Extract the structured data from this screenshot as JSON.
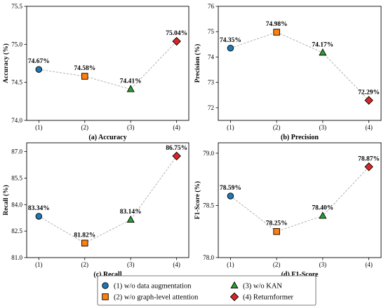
{
  "chart_data": [
    {
      "type": "line",
      "caption": "(a) Accuracy",
      "ylabel": "Accuracy (%)",
      "categories": [
        "(1)",
        "(2)",
        "(3)",
        "(4)"
      ],
      "values": [
        74.67,
        74.58,
        74.41,
        75.04
      ],
      "labels": [
        "74.67%",
        "74.58%",
        "74.41%",
        "75.04%"
      ],
      "ylim": [
        74.0,
        75.5
      ],
      "yticks": [
        74.0,
        74.5,
        75.0,
        75.5
      ],
      "ytick_labels": [
        "74.0",
        "74.5",
        "75.0",
        "75.5"
      ]
    },
    {
      "type": "line",
      "caption": "(b) Precision",
      "ylabel": "Precision (%)",
      "categories": [
        "(1)",
        "(2)",
        "(3)",
        "(4)"
      ],
      "values": [
        74.35,
        74.98,
        74.17,
        72.29
      ],
      "labels": [
        "74.35%",
        "74.98%",
        "74.17%",
        "72.29%"
      ],
      "ylim": [
        71.5,
        76.0
      ],
      "yticks": [
        72,
        73,
        74,
        75,
        76
      ],
      "ytick_labels": [
        "72",
        "73",
        "74",
        "75",
        "76"
      ]
    },
    {
      "type": "line",
      "caption": "(c) Recall",
      "ylabel": "Recall (%)",
      "categories": [
        "(1)",
        "(2)",
        "(3)",
        "(4)"
      ],
      "values": [
        83.34,
        81.82,
        83.14,
        86.75
      ],
      "labels": [
        "83.34%",
        "81.82%",
        "83.14%",
        "86.75%"
      ],
      "ylim": [
        81.0,
        87.5
      ],
      "yticks": [
        81.0,
        82.5,
        84.0,
        85.5,
        87.0
      ],
      "ytick_labels": [
        "81.0",
        "82.5",
        "84.0",
        "85.5",
        "87.0"
      ]
    },
    {
      "type": "line",
      "caption": "(d) F1-Score",
      "ylabel": "F1-Score (%)",
      "categories": [
        "(1)",
        "(2)",
        "(3)",
        "(4)"
      ],
      "values": [
        78.59,
        78.25,
        78.4,
        78.87
      ],
      "labels": [
        "78.59%",
        "78.25%",
        "78.40%",
        "78.87%"
      ],
      "ylim": [
        78.0,
        79.1
      ],
      "yticks": [
        78.0,
        78.5,
        79.0
      ],
      "ytick_labels": [
        "78.0",
        "78.5",
        "79.0"
      ]
    }
  ],
  "legend": [
    {
      "label": "(1) w/o data augmentation",
      "marker": "circle",
      "color": "#1f77b4"
    },
    {
      "label": "(2) w/o graph-level attention",
      "marker": "square",
      "color": "#ff7f0e"
    },
    {
      "label": "(3) w/o KAN",
      "marker": "triangle",
      "color": "#2ca02c"
    },
    {
      "label": "(4) Returnformer",
      "marker": "diamond",
      "color": "#d62728"
    }
  ],
  "line_color": "#aaaaaa"
}
